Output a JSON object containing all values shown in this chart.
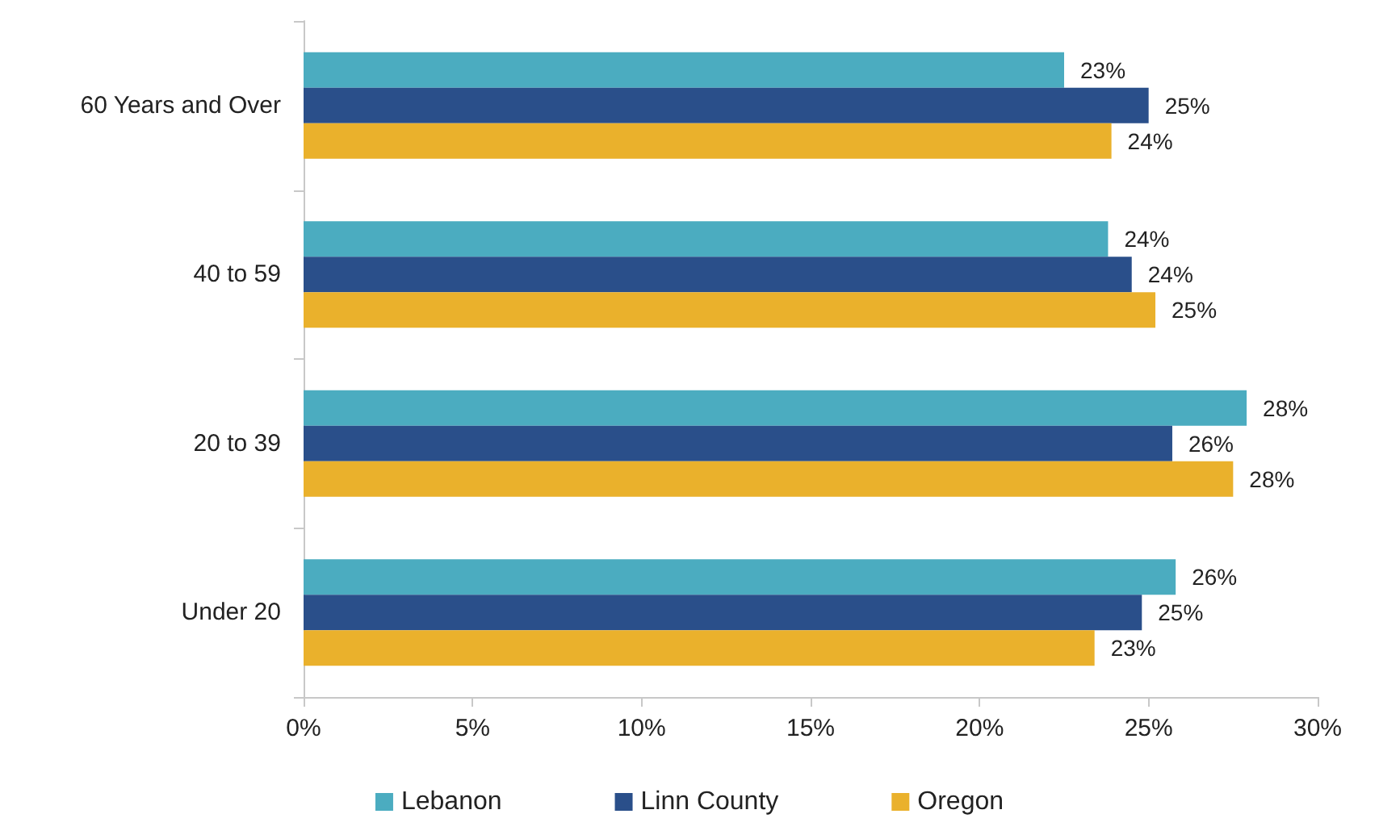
{
  "chart_data": {
    "type": "bar",
    "orientation": "horizontal",
    "categories": [
      "60 Years and Over",
      "40 to 59",
      "20 to 39",
      "Under 20"
    ],
    "series": [
      {
        "name": "Lebanon",
        "color": "#4bacc0",
        "values": [
          22.5,
          23.8,
          27.9,
          25.8
        ],
        "value_labels": [
          "23%",
          "24%",
          "28%",
          "26%"
        ]
      },
      {
        "name": "Linn County",
        "color": "#2a4f8a",
        "values": [
          25.0,
          24.5,
          25.7,
          24.8
        ],
        "value_labels": [
          "25%",
          "24%",
          "26%",
          "25%"
        ]
      },
      {
        "name": "Oregon",
        "color": "#eab12c",
        "values": [
          23.9,
          25.2,
          27.5,
          23.4
        ],
        "value_labels": [
          "24%",
          "25%",
          "28%",
          "23%"
        ]
      }
    ],
    "xlim": [
      0,
      30
    ],
    "xticks": [
      {
        "value": 0,
        "label": "0%"
      },
      {
        "value": 5,
        "label": "5%"
      },
      {
        "value": 10,
        "label": "10%"
      },
      {
        "value": 15,
        "label": "15%"
      },
      {
        "value": 20,
        "label": "20%"
      },
      {
        "value": 25,
        "label": "25%"
      },
      {
        "value": 30,
        "label": "30%"
      }
    ],
    "grid": false,
    "legend": "bottom"
  }
}
